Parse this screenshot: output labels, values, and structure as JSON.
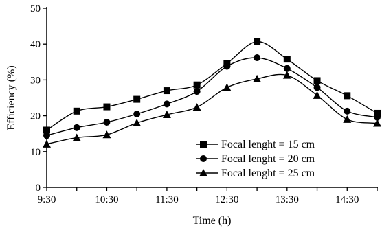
{
  "chart_data": {
    "type": "line",
    "title": "",
    "xlabel": "Time (h)",
    "ylabel": "Efficiency (%)",
    "x": [
      "9:30",
      "10:00",
      "10:30",
      "11:00",
      "11:30",
      "12:00",
      "12:30",
      "13:00",
      "13:30",
      "14:00",
      "14:30",
      "15:00"
    ],
    "x_tick_labels": [
      "9:30",
      "10:30",
      "11:30",
      "12:30",
      "13:30",
      "14:30"
    ],
    "ylim": [
      0,
      50
    ],
    "y_ticks": [
      "0",
      "10",
      "20",
      "30",
      "40",
      "50"
    ],
    "grid": false,
    "legend_position": "bottom-right",
    "series": [
      {
        "name": "Focal lenght = 15 cm",
        "marker": "square",
        "values": [
          16,
          21.3,
          22.5,
          24.6,
          27,
          28.6,
          34.6,
          40.7,
          35.8,
          29.8,
          25.6,
          20.7
        ]
      },
      {
        "name": "Focal lenght = 20 cm",
        "marker": "circle",
        "values": [
          14.5,
          16.7,
          18.2,
          20.5,
          23.3,
          26.8,
          33.8,
          36.2,
          33.2,
          27.9,
          21.3,
          19.6
        ]
      },
      {
        "name": "Focal lenght = 25 cm",
        "marker": "triangle",
        "values": [
          12.1,
          13.9,
          14.7,
          18,
          20.3,
          22.4,
          27.9,
          30.3,
          31.3,
          25.7,
          19,
          17.9
        ]
      }
    ],
    "colors": {
      "line": "#000000",
      "background": "#ffffff"
    }
  }
}
